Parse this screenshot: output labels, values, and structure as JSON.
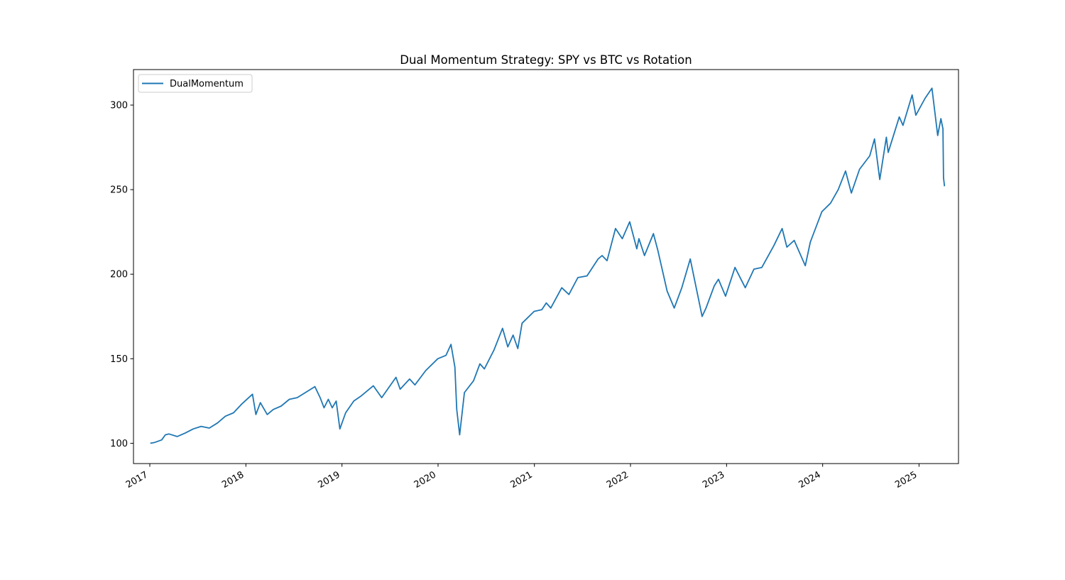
{
  "chart_data": {
    "type": "line",
    "title": "Dual Momentum Strategy: SPY vs BTC vs Rotation",
    "xlabel": "",
    "ylabel": "",
    "x_range": [
      "2016-10-31",
      "2025-05-31"
    ],
    "ylim": [
      88,
      321
    ],
    "x_ticks": [
      "2017",
      "2018",
      "2019",
      "2020",
      "2021",
      "2022",
      "2023",
      "2024",
      "2025"
    ],
    "x_tick_dates": [
      "2017-01-01",
      "2018-01-01",
      "2019-01-01",
      "2020-01-01",
      "2021-01-01",
      "2022-01-01",
      "2023-01-01",
      "2024-01-01",
      "2025-01-01"
    ],
    "y_ticks": [
      100,
      150,
      200,
      250,
      300
    ],
    "grid": false,
    "legend": {
      "position": "upper-left",
      "entries": [
        "DualMomentum"
      ]
    },
    "series": [
      {
        "name": "DualMomentum",
        "color": "#1f77b4",
        "points": [
          [
            "2017-01-03",
            100
          ],
          [
            "2017-01-20",
            100.5
          ],
          [
            "2017-02-15",
            102
          ],
          [
            "2017-03-01",
            105
          ],
          [
            "2017-03-15",
            105.5
          ],
          [
            "2017-04-15",
            104
          ],
          [
            "2017-05-15",
            106
          ],
          [
            "2017-06-15",
            108.5
          ],
          [
            "2017-07-15",
            110
          ],
          [
            "2017-08-15",
            109
          ],
          [
            "2017-09-15",
            112
          ],
          [
            "2017-10-15",
            116
          ],
          [
            "2017-11-15",
            118
          ],
          [
            "2017-12-15",
            123
          ],
          [
            "2018-01-26",
            129
          ],
          [
            "2018-02-08",
            117
          ],
          [
            "2018-02-25",
            124
          ],
          [
            "2018-03-23",
            117
          ],
          [
            "2018-04-15",
            120
          ],
          [
            "2018-05-15",
            122
          ],
          [
            "2018-06-15",
            126
          ],
          [
            "2018-07-15",
            127
          ],
          [
            "2018-08-15",
            130
          ],
          [
            "2018-09-20",
            133.5
          ],
          [
            "2018-10-10",
            127
          ],
          [
            "2018-10-25",
            121
          ],
          [
            "2018-11-10",
            126
          ],
          [
            "2018-11-25",
            121
          ],
          [
            "2018-12-10",
            125
          ],
          [
            "2018-12-24",
            108.5
          ],
          [
            "2019-01-15",
            118
          ],
          [
            "2019-02-15",
            125
          ],
          [
            "2019-03-15",
            128
          ],
          [
            "2019-04-30",
            134
          ],
          [
            "2019-06-01",
            127
          ],
          [
            "2019-07-25",
            139
          ],
          [
            "2019-08-10",
            132
          ],
          [
            "2019-09-15",
            138
          ],
          [
            "2019-10-05",
            134.5
          ],
          [
            "2019-11-15",
            143
          ],
          [
            "2019-12-31",
            150
          ],
          [
            "2020-01-31",
            152
          ],
          [
            "2020-02-19",
            158.5
          ],
          [
            "2020-03-05",
            145
          ],
          [
            "2020-03-12",
            120
          ],
          [
            "2020-03-23",
            105
          ],
          [
            "2020-04-10",
            130
          ],
          [
            "2020-05-15",
            137
          ],
          [
            "2020-06-08",
            147
          ],
          [
            "2020-06-25",
            144
          ],
          [
            "2020-07-31",
            155
          ],
          [
            "2020-09-02",
            168
          ],
          [
            "2020-09-22",
            157
          ],
          [
            "2020-10-12",
            164
          ],
          [
            "2020-10-30",
            156
          ],
          [
            "2020-11-15",
            171
          ],
          [
            "2020-12-31",
            178
          ],
          [
            "2021-01-29",
            179
          ],
          [
            "2021-02-15",
            183
          ],
          [
            "2021-03-04",
            180
          ],
          [
            "2021-04-15",
            192
          ],
          [
            "2021-05-12",
            188
          ],
          [
            "2021-06-15",
            198
          ],
          [
            "2021-07-20",
            199
          ],
          [
            "2021-08-31",
            209
          ],
          [
            "2021-09-15",
            211
          ],
          [
            "2021-10-04",
            208
          ],
          [
            "2021-11-05",
            227
          ],
          [
            "2021-12-01",
            221
          ],
          [
            "2021-12-29",
            231
          ],
          [
            "2022-01-25",
            215
          ],
          [
            "2022-02-02",
            221
          ],
          [
            "2022-02-23",
            211
          ],
          [
            "2022-03-29",
            224
          ],
          [
            "2022-04-15",
            214
          ],
          [
            "2022-05-20",
            190
          ],
          [
            "2022-06-16",
            180
          ],
          [
            "2022-07-15",
            192
          ],
          [
            "2022-08-16",
            209
          ],
          [
            "2022-09-30",
            175
          ],
          [
            "2022-10-15",
            180
          ],
          [
            "2022-11-15",
            193
          ],
          [
            "2022-12-01",
            197
          ],
          [
            "2022-12-28",
            187
          ],
          [
            "2023-02-02",
            204
          ],
          [
            "2023-03-13",
            192
          ],
          [
            "2023-04-15",
            203
          ],
          [
            "2023-05-15",
            204
          ],
          [
            "2023-06-30",
            217
          ],
          [
            "2023-07-31",
            227
          ],
          [
            "2023-08-18",
            216
          ],
          [
            "2023-09-15",
            220
          ],
          [
            "2023-10-27",
            205
          ],
          [
            "2023-11-15",
            219
          ],
          [
            "2023-12-29",
            237
          ],
          [
            "2024-01-31",
            242
          ],
          [
            "2024-02-29",
            250
          ],
          [
            "2024-03-28",
            261
          ],
          [
            "2024-04-19",
            248
          ],
          [
            "2024-05-20",
            262
          ],
          [
            "2024-06-28",
            270
          ],
          [
            "2024-07-16",
            280
          ],
          [
            "2024-08-05",
            256
          ],
          [
            "2024-08-30",
            281
          ],
          [
            "2024-09-06",
            272
          ],
          [
            "2024-10-18",
            293
          ],
          [
            "2024-11-01",
            288
          ],
          [
            "2024-12-06",
            306
          ],
          [
            "2024-12-20",
            294
          ],
          [
            "2025-01-24",
            304
          ],
          [
            "2025-02-19",
            310
          ],
          [
            "2025-03-13",
            282
          ],
          [
            "2025-03-25",
            292
          ],
          [
            "2025-04-02",
            286
          ],
          [
            "2025-04-04",
            257
          ],
          [
            "2025-04-08",
            252
          ]
        ]
      }
    ]
  }
}
